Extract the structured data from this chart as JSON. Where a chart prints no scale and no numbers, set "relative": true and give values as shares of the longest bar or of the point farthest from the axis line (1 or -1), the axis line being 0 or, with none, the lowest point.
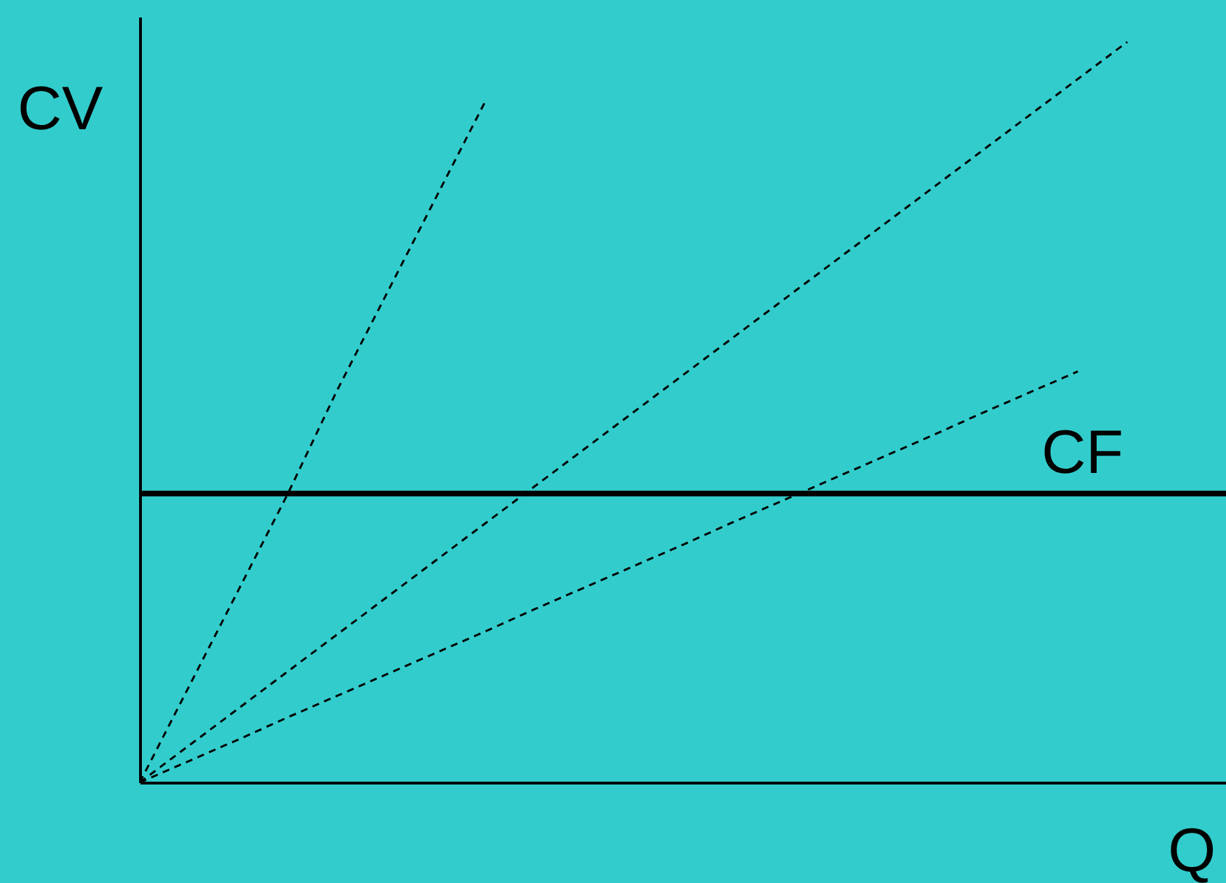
{
  "chart_data": {
    "type": "line",
    "relative": true,
    "xlabel": "Q",
    "ylabel": "CV",
    "ylim": [
      0,
      1.034
    ],
    "tick_labels": false,
    "grid": false,
    "categories": [
      null,
      null,
      null,
      null,
      null,
      null,
      null,
      null,
      null,
      null,
      null,
      null,
      null,
      null,
      null,
      null,
      null,
      null,
      null,
      null,
      null,
      null,
      null
    ],
    "series": [
      {
        "color": "#000000",
        "line_style": "dashed",
        "values": [
          0,
          0.13,
          0.26,
          0.39,
          0.53,
          0.66,
          0.79,
          0.92,
          null,
          null,
          null,
          null,
          null,
          null,
          null,
          null,
          null,
          null,
          null,
          null,
          null,
          null,
          null
        ]
      },
      {
        "color": "#000000",
        "line_style": "dashed",
        "values": [
          0,
          0.05,
          0.1,
          0.15,
          0.2,
          0.25,
          0.3,
          0.35,
          0.4,
          0.45,
          0.5,
          0.55,
          0.6,
          0.65,
          0.7,
          0.75,
          0.8,
          0.85,
          0.9,
          0.95,
          1,
          null,
          null
        ]
      },
      {
        "color": "#000000",
        "line_style": "dashed",
        "values": [
          0,
          0.029,
          0.058,
          0.088,
          0.117,
          0.146,
          0.175,
          0.204,
          0.234,
          0.263,
          0.292,
          0.321,
          0.351,
          0.38,
          0.409,
          0.438,
          0.467,
          0.497,
          0.526,
          0.555,
          null,
          null,
          null
        ]
      },
      {
        "name": "CF",
        "color": "#000000",
        "line_style": "solid",
        "values": [
          0.39,
          0.39,
          0.39,
          0.39,
          0.39,
          0.39,
          0.39,
          0.39,
          0.39,
          0.39,
          0.39,
          0.39,
          0.39,
          0.39,
          0.39,
          0.39,
          0.39,
          0.39,
          0.39,
          0.39,
          0.39,
          0.39,
          0.39
        ]
      }
    ]
  }
}
